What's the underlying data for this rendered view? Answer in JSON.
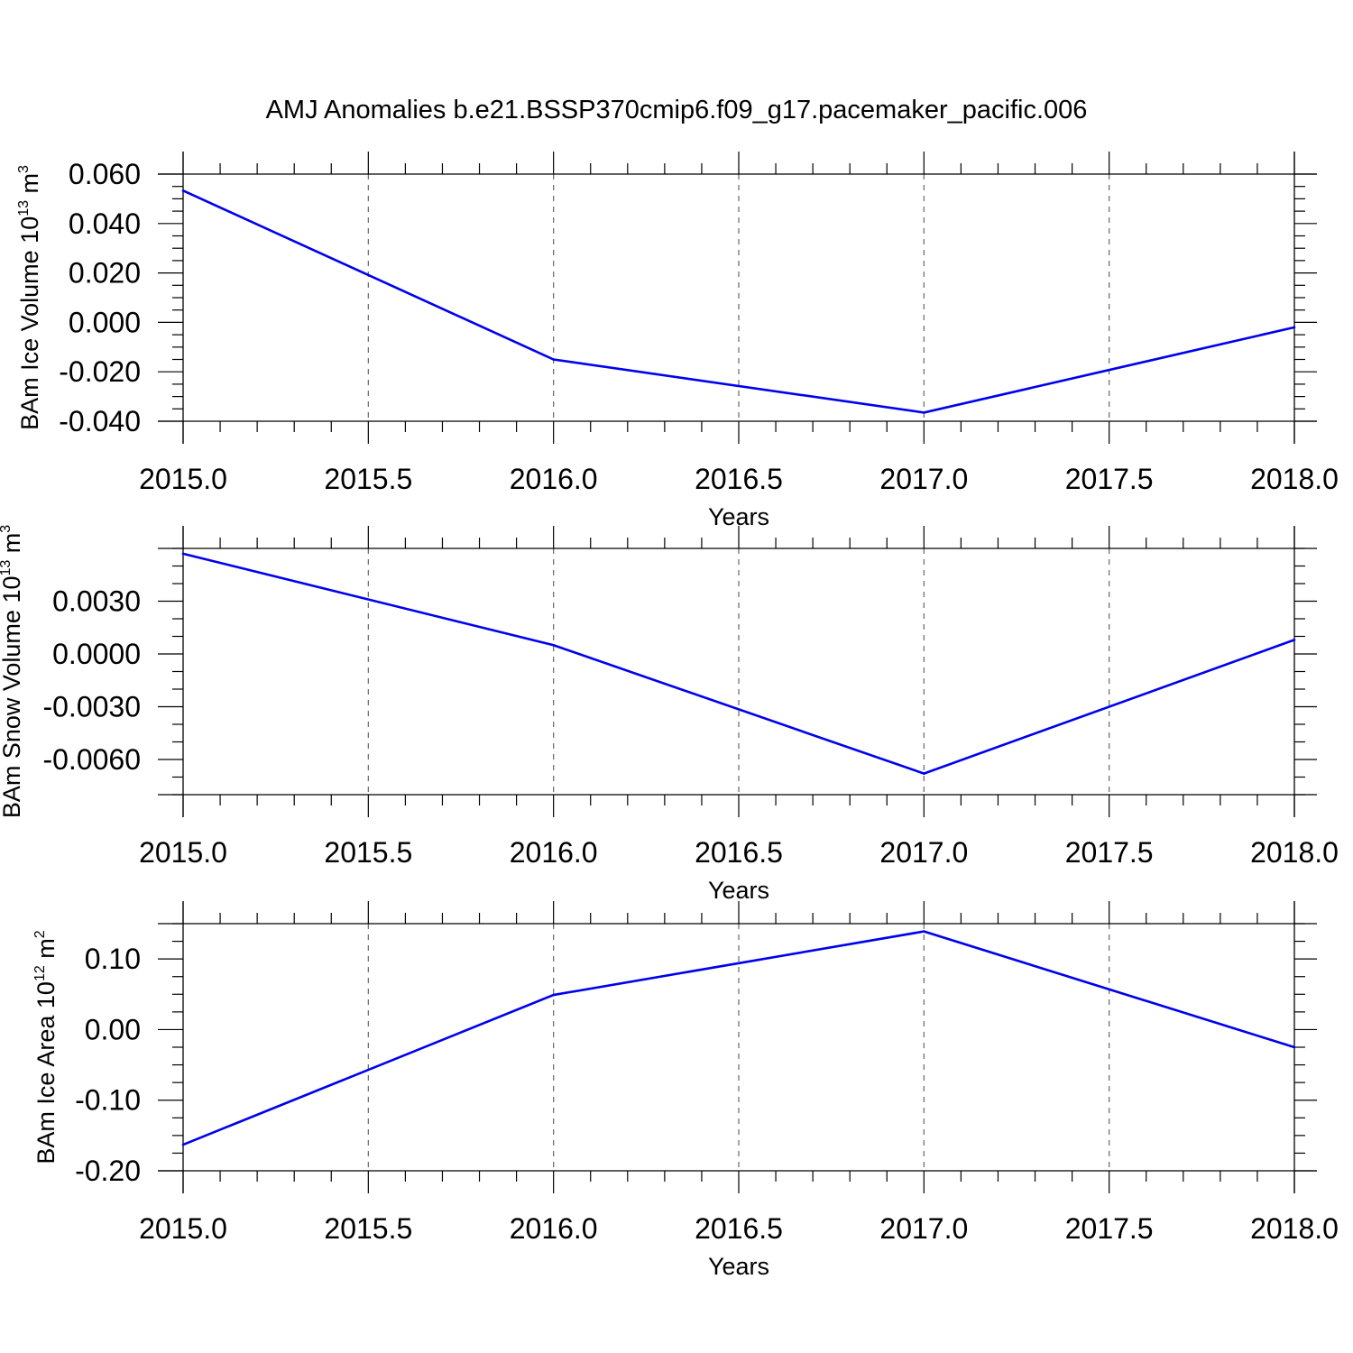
{
  "figure_title": "AMJ Anomalies b.e21.BSSP370cmip6.f09_g17.pacemaker_pacific.006",
  "colors": {
    "line": "#0000ee",
    "axis": "#000000",
    "grid": "#666666"
  },
  "chart_data": [
    {
      "type": "line",
      "xlabel": "Years",
      "ylabel": {
        "prefix": "BAm Ice Volume 10",
        "exp": "13",
        "unit": " m",
        "unit_exp": "3"
      },
      "x": [
        2015.0,
        2016.0,
        2017.0,
        2018.0
      ],
      "series": [
        {
          "values": [
            0.0533,
            -0.015,
            -0.0365,
            -0.002
          ]
        }
      ],
      "xlim": [
        2015.0,
        2018.0
      ],
      "ylim": [
        -0.04,
        0.06
      ],
      "xticks": [
        2015.0,
        2015.5,
        2016.0,
        2016.5,
        2017.0,
        2017.5,
        2018.0
      ],
      "xtick_labels": [
        "2015.0",
        "2015.5",
        "2016.0",
        "2016.5",
        "2017.0",
        "2017.5",
        "2018.0"
      ],
      "yticks": [
        -0.04,
        -0.02,
        0.0,
        0.02,
        0.04,
        0.06
      ],
      "ytick_labels": [
        "-0.040",
        "-0.020",
        "0.000",
        "0.020",
        "0.040",
        "0.060"
      ],
      "minor_y_step": 0.005,
      "grid": "x-dashed"
    },
    {
      "type": "line",
      "xlabel": "Years",
      "ylabel": {
        "prefix": "BAm Snow Volume 10",
        "exp": "13",
        "unit": " m",
        "unit_exp": "3"
      },
      "x": [
        2015.0,
        2016.0,
        2017.0,
        2018.0
      ],
      "series": [
        {
          "values": [
            0.0057,
            0.0005,
            -0.0068,
            0.0008
          ]
        }
      ],
      "xlim": [
        2015.0,
        2018.0
      ],
      "ylim": [
        -0.008,
        0.006
      ],
      "xticks": [
        2015.0,
        2015.5,
        2016.0,
        2016.5,
        2017.0,
        2017.5,
        2018.0
      ],
      "xtick_labels": [
        "2015.0",
        "2015.5",
        "2016.0",
        "2016.5",
        "2017.0",
        "2017.5",
        "2018.0"
      ],
      "yticks": [
        -0.006,
        -0.003,
        0.0,
        0.003
      ],
      "ytick_labels": [
        "-0.0060",
        "-0.0030",
        "0.0000",
        "0.0030"
      ],
      "minor_y_step": 0.001,
      "grid": "x-dashed"
    },
    {
      "type": "line",
      "xlabel": "Years",
      "ylabel": {
        "prefix": "BAm Ice Area 10",
        "exp": "12",
        "unit": " m",
        "unit_exp": "2"
      },
      "x": [
        2015.0,
        2016.0,
        2017.0,
        2018.0
      ],
      "series": [
        {
          "values": [
            -0.163,
            0.049,
            0.139,
            -0.025
          ]
        }
      ],
      "xlim": [
        2015.0,
        2018.0
      ],
      "ylim": [
        -0.2,
        0.15
      ],
      "xticks": [
        2015.0,
        2015.5,
        2016.0,
        2016.5,
        2017.0,
        2017.5,
        2018.0
      ],
      "xtick_labels": [
        "2015.0",
        "2015.5",
        "2016.0",
        "2016.5",
        "2017.0",
        "2017.5",
        "2018.0"
      ],
      "yticks": [
        -0.2,
        -0.1,
        0.0,
        0.1
      ],
      "ytick_labels": [
        "-0.20",
        "-0.10",
        "0.00",
        "0.10"
      ],
      "minor_y_step": 0.025,
      "grid": "x-dashed"
    }
  ]
}
